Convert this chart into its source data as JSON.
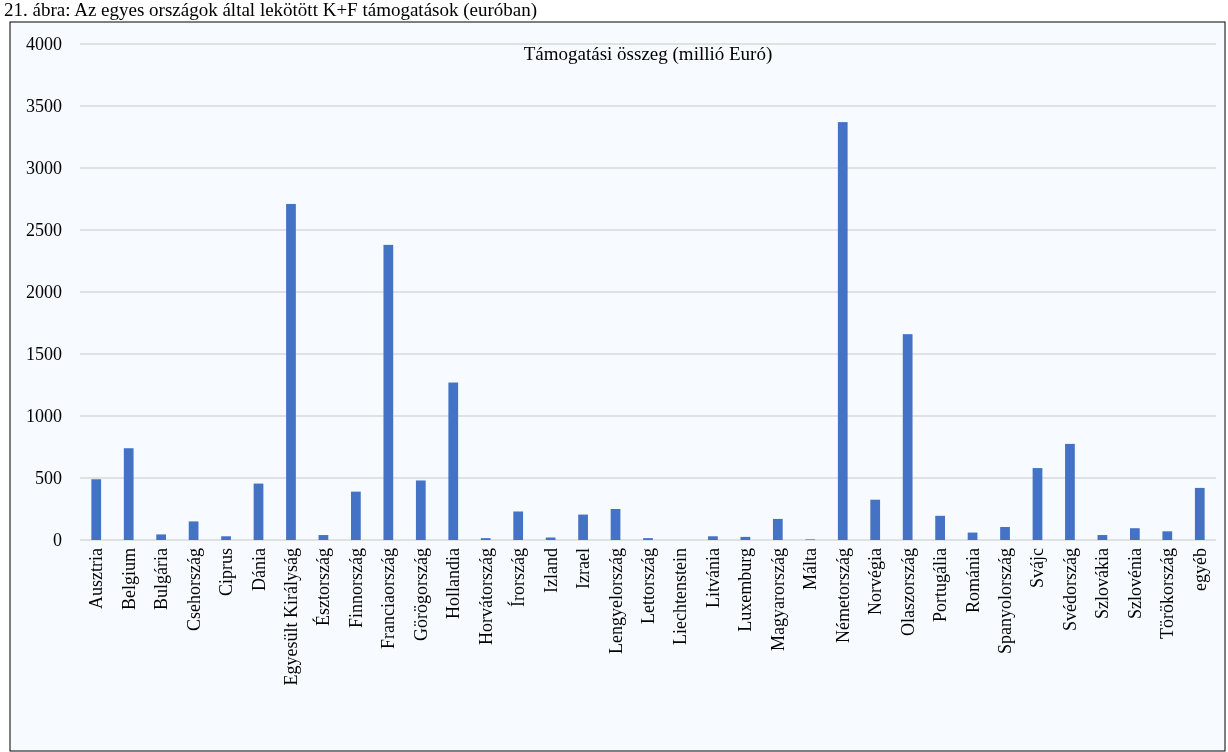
{
  "chart_data": {
    "type": "bar",
    "title": "21. ábra: Az egyes országok által lekötött K+F támogatások (euróban)",
    "subtitle": "Támogatási összeg (millió Euró)",
    "categories": [
      "Ausztria",
      "Belgium",
      "Bulgária",
      "Csehország",
      "Ciprus",
      "Dánia",
      "Egyesült Királyság",
      "Észtország",
      "Finnország",
      "Franciaország",
      "Görögország",
      "Hollandia",
      "Horvátország",
      "Írország",
      "Izland",
      "Izrael",
      "Lengyelország",
      "Lettország",
      "Liechtenstein",
      "Litvánia",
      "Luxemburg",
      "Magyarország",
      "Málta",
      "Németország",
      "Norvégia",
      "Olaszország",
      "Portugália",
      "Románia",
      "Spanyolország",
      "Svájc",
      "Svédország",
      "Szlovákia",
      "Szlovénia",
      "Törökország",
      "egyéb"
    ],
    "values": [
      490,
      740,
      45,
      150,
      30,
      455,
      2710,
      40,
      390,
      2380,
      480,
      1270,
      15,
      230,
      20,
      205,
      250,
      15,
      0,
      30,
      25,
      170,
      5,
      3370,
      325,
      1660,
      195,
      60,
      105,
      580,
      775,
      40,
      95,
      70,
      420
    ],
    "color": "#4472c4",
    "ylim": [
      0,
      4000
    ],
    "yticks": [
      0,
      500,
      1000,
      1500,
      2000,
      2500,
      3000,
      3500,
      4000
    ],
    "grid": "y"
  }
}
